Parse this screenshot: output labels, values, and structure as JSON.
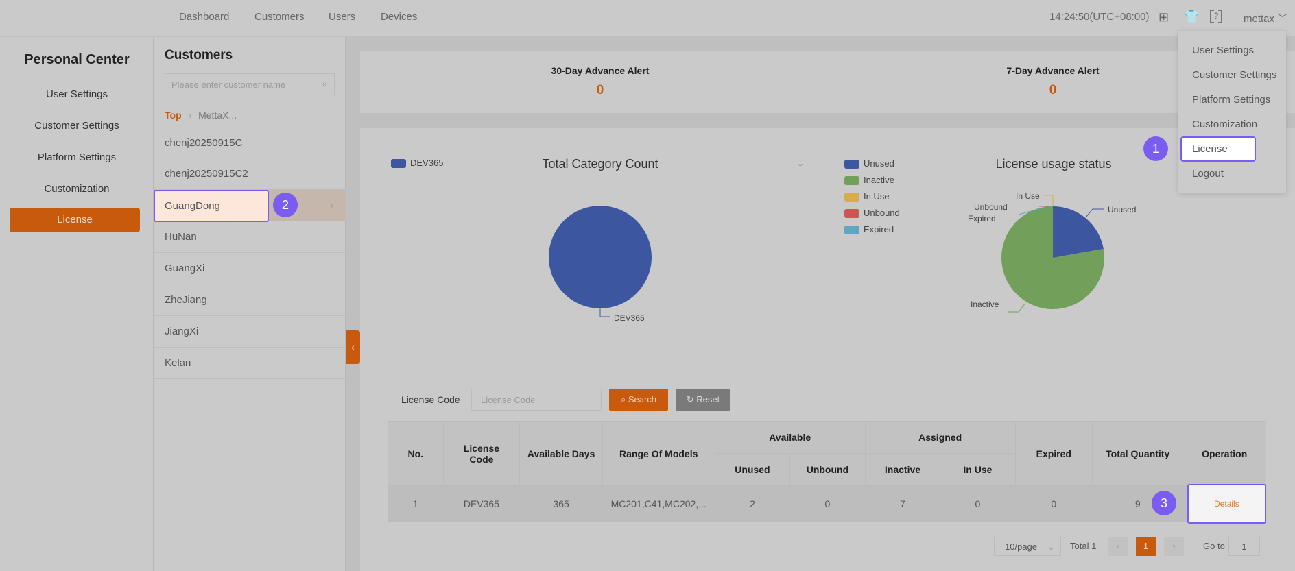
{
  "header": {
    "nav": [
      "Dashboard",
      "Customers",
      "Users",
      "Devices"
    ],
    "time": "14:24:50(UTC+08:00)",
    "user": "mettax",
    "icons": [
      "grid-icon",
      "shirt-icon",
      "help-scan-icon"
    ]
  },
  "sidebar": {
    "title": "Personal Center",
    "items": [
      "User Settings",
      "Customer Settings",
      "Platform Settings",
      "Customization",
      "License"
    ],
    "active": "License"
  },
  "customers": {
    "title": "Customers",
    "search_placeholder": "Please enter customer name",
    "breadcrumb": [
      "Top",
      "MettaX..."
    ],
    "items": [
      "chenj20250915C",
      "chenj20250915C2",
      "GuangDong",
      "HuNan",
      "GuangXi",
      "ZheJiang",
      "JiangXi",
      "Kelan"
    ],
    "selected": "GuangDong"
  },
  "alerts": {
    "a30_label": "30-Day Advance Alert",
    "a30_value": "0",
    "a7_label": "7-Day Advance Alert",
    "a7_value": "0"
  },
  "user_menu": {
    "items": [
      "User Settings",
      "Customer Settings",
      "Platform Settings",
      "Customization",
      "License",
      "Logout"
    ],
    "highlighted": "License"
  },
  "chart_data": [
    {
      "type": "pie",
      "title": "Total Category Count",
      "legend": [
        "DEV365"
      ],
      "slices": [
        {
          "label": "DEV365",
          "value": 1,
          "color": "#3d56a0"
        }
      ]
    },
    {
      "type": "pie",
      "title": "License usage status",
      "legend": [
        "Unused",
        "Inactive",
        "In Use",
        "Unbound",
        "Expired"
      ],
      "slices": [
        {
          "label": "Unused",
          "value": 2,
          "color": "#3d56a0"
        },
        {
          "label": "Inactive",
          "value": 7,
          "color": "#72a05a"
        },
        {
          "label": "In Use",
          "value": 0,
          "color": "#d8ac48"
        },
        {
          "label": "Unbound",
          "value": 0,
          "color": "#cc5555"
        },
        {
          "label": "Expired",
          "value": 0,
          "color": "#5fa6c0"
        }
      ]
    }
  ],
  "filter": {
    "label": "License Code",
    "placeholder": "License Code",
    "search": "Search",
    "reset": "Reset"
  },
  "table": {
    "headers": {
      "no": "No.",
      "code": "License Code",
      "days": "Available Days",
      "models": "Range Of Models",
      "available": "Available",
      "assigned": "Assigned",
      "unused": "Unused",
      "unbound": "Unbound",
      "inactive": "Inactive",
      "inuse": "In Use",
      "expired": "Expired",
      "total": "Total Quantity",
      "op": "Operation"
    },
    "rows": [
      {
        "no": "1",
        "code": "DEV365",
        "days": "365",
        "models": "MC201,C41,MC202,...",
        "unused": "2",
        "unbound": "0",
        "inactive": "7",
        "inuse": "0",
        "expired": "0",
        "total": "9",
        "op": "Details"
      }
    ]
  },
  "pagination": {
    "page_size": "10/page",
    "total": "Total 1",
    "current": "1",
    "goto_label": "Go to",
    "goto_value": "1"
  },
  "badges": [
    "1",
    "2",
    "3"
  ],
  "colors": {
    "accent": "#c85a0e",
    "highlight": "#7b5cf0"
  }
}
